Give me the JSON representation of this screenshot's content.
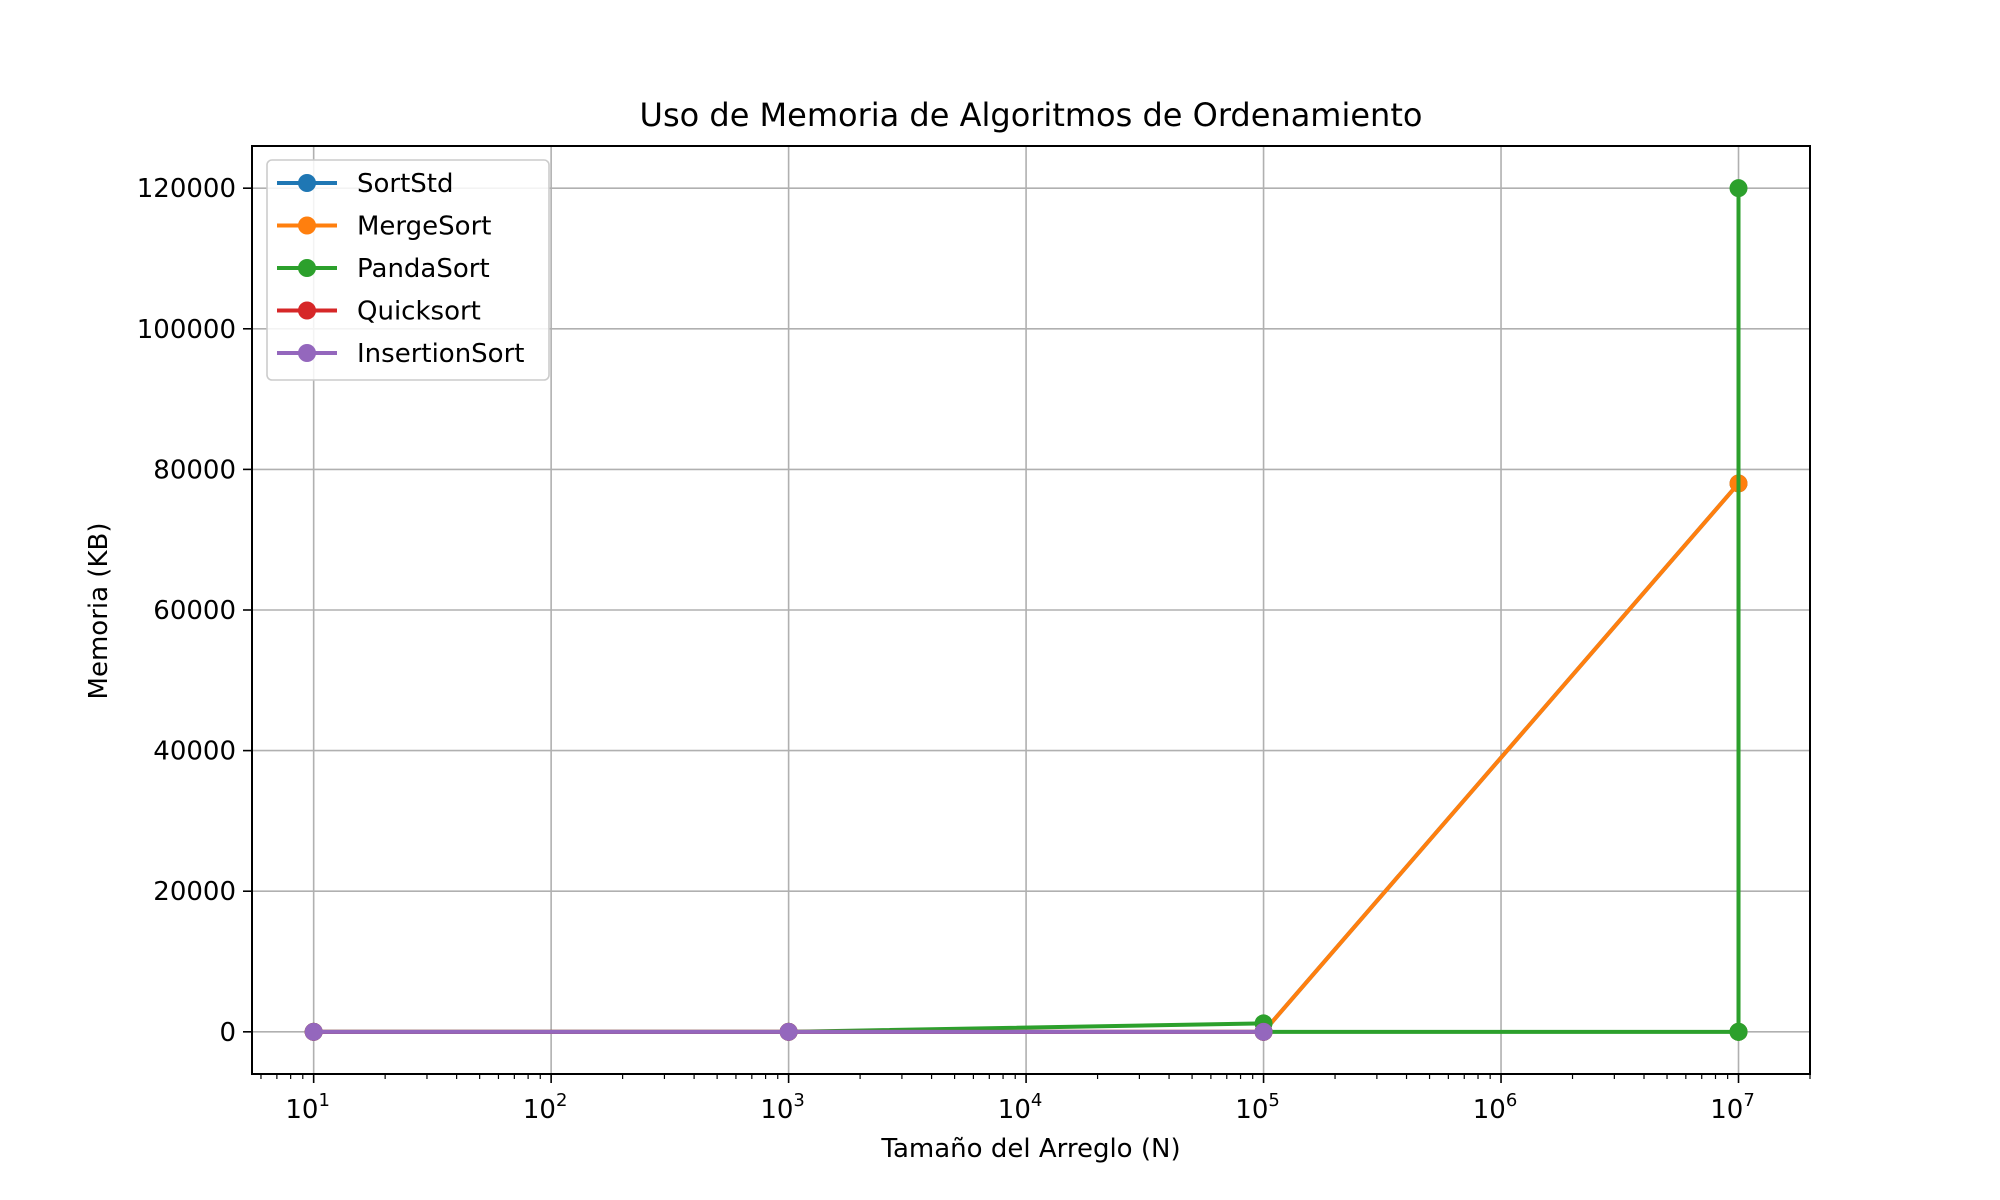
{
  "chart_data": {
    "type": "line",
    "title": "Uso de Memoria de Algoritmos de Ordenamiento",
    "xlabel": "Tamaño del Arreglo (N)",
    "ylabel": "Memoria (KB)",
    "x_scale": "log",
    "xlim": [
      5.5,
      20000000
    ],
    "ylim": [
      -6000,
      126000
    ],
    "grid": true,
    "legend_position": "top-left",
    "x_ticks": [
      {
        "base": "10",
        "exp": "1",
        "value": 10
      },
      {
        "base": "10",
        "exp": "2",
        "value": 100
      },
      {
        "base": "10",
        "exp": "3",
        "value": 1000
      },
      {
        "base": "10",
        "exp": "4",
        "value": 10000
      },
      {
        "base": "10",
        "exp": "5",
        "value": 100000
      },
      {
        "base": "10",
        "exp": "6",
        "value": 1000000
      },
      {
        "base": "10",
        "exp": "7",
        "value": 10000000
      }
    ],
    "y_ticks": [
      {
        "label": "0",
        "value": 0
      },
      {
        "label": "20000",
        "value": 20000
      },
      {
        "label": "40000",
        "value": 40000
      },
      {
        "label": "60000",
        "value": 60000
      },
      {
        "label": "80000",
        "value": 80000
      },
      {
        "label": "100000",
        "value": 100000
      },
      {
        "label": "120000",
        "value": 120000
      }
    ],
    "series": [
      {
        "name": "SortStd",
        "color": "#1f77b4",
        "x": [
          10,
          1000,
          100000,
          10000000,
          10000000
        ],
        "values": [
          0,
          0,
          0,
          78000,
          0
        ]
      },
      {
        "name": "MergeSort",
        "color": "#ff7f0e",
        "x": [
          10,
          1000,
          100000,
          10000000,
          10000000
        ],
        "values": [
          0,
          0,
          0,
          78000,
          0
        ]
      },
      {
        "name": "PandaSort",
        "color": "#2ca02c",
        "x": [
          10,
          1000,
          100000,
          100000,
          10000000,
          10000000,
          10000000
        ],
        "values": [
          0,
          0,
          1200,
          0,
          0,
          120000,
          0
        ]
      },
      {
        "name": "Quicksort",
        "color": "#d62728",
        "x": [
          10,
          1000,
          100000
        ],
        "values": [
          0,
          0,
          0
        ]
      },
      {
        "name": "InsertionSort",
        "color": "#9467bd",
        "x": [
          10,
          1000,
          100000
        ],
        "values": [
          0,
          0,
          0
        ]
      }
    ]
  }
}
